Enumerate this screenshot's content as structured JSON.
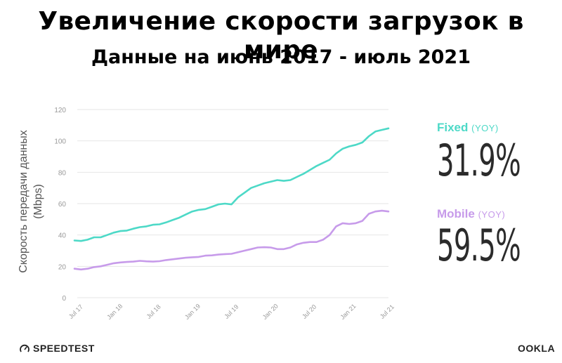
{
  "header": {
    "title": "Увеличение скорости загрузок в мире",
    "subtitle": "Данные на июнь 2017 - июль 2021"
  },
  "axis": {
    "ylabel_line1": "Скорость передачи данных",
    "ylabel_line2": "(Mbps)"
  },
  "stats": {
    "fixed": {
      "name": "Fixed",
      "yoy": "(YOY)",
      "value": "31.9%",
      "color": "#4dd9c7"
    },
    "mobile": {
      "name": "Mobile",
      "yoy": "(YOY)",
      "value": "59.5%",
      "color": "#c79bea"
    }
  },
  "brands": {
    "speedtest": "SPEEDTEST",
    "ookla": "OOKLA"
  },
  "chart_data": {
    "type": "line",
    "x_tick_labels": [
      "Jul 17",
      "Jan 18",
      "Jul 18",
      "Jan 19",
      "Jul 19",
      "Jan 20",
      "Jul 20",
      "Jan 21",
      "Jul 21"
    ],
    "y_ticks": [
      0,
      20,
      40,
      60,
      80,
      100,
      120
    ],
    "ylim": [
      0,
      120
    ],
    "grid": true,
    "series": [
      {
        "name": "Fixed",
        "color": "#4dd9c7",
        "values": [
          36.5,
          36.2,
          37,
          38.5,
          38.5,
          40,
          41.5,
          42.5,
          42.8,
          44,
          45,
          45.5,
          46.5,
          46.8,
          48,
          49.5,
          51,
          53,
          55,
          56,
          56.5,
          58,
          59.5,
          60,
          59.5,
          64,
          67,
          70,
          71.5,
          73,
          74,
          75,
          74.5,
          75,
          77,
          79,
          81.5,
          84,
          86,
          88,
          92,
          95,
          96.5,
          97.5,
          99,
          103,
          106,
          107,
          108
        ]
      },
      {
        "name": "Mobile",
        "color": "#c79bea",
        "values": [
          18.5,
          18,
          18.5,
          19.5,
          20,
          21,
          22,
          22.5,
          22.8,
          23,
          23.5,
          23.2,
          23,
          23.3,
          24,
          24.5,
          25,
          25.5,
          25.8,
          26,
          26.8,
          27,
          27.5,
          27.8,
          28,
          29,
          30,
          31,
          32,
          32.2,
          32,
          31,
          31,
          32,
          34,
          35,
          35.5,
          35.5,
          37,
          40,
          45.5,
          47.5,
          47,
          47.5,
          49,
          53.5,
          55,
          55.5,
          55
        ]
      }
    ]
  }
}
